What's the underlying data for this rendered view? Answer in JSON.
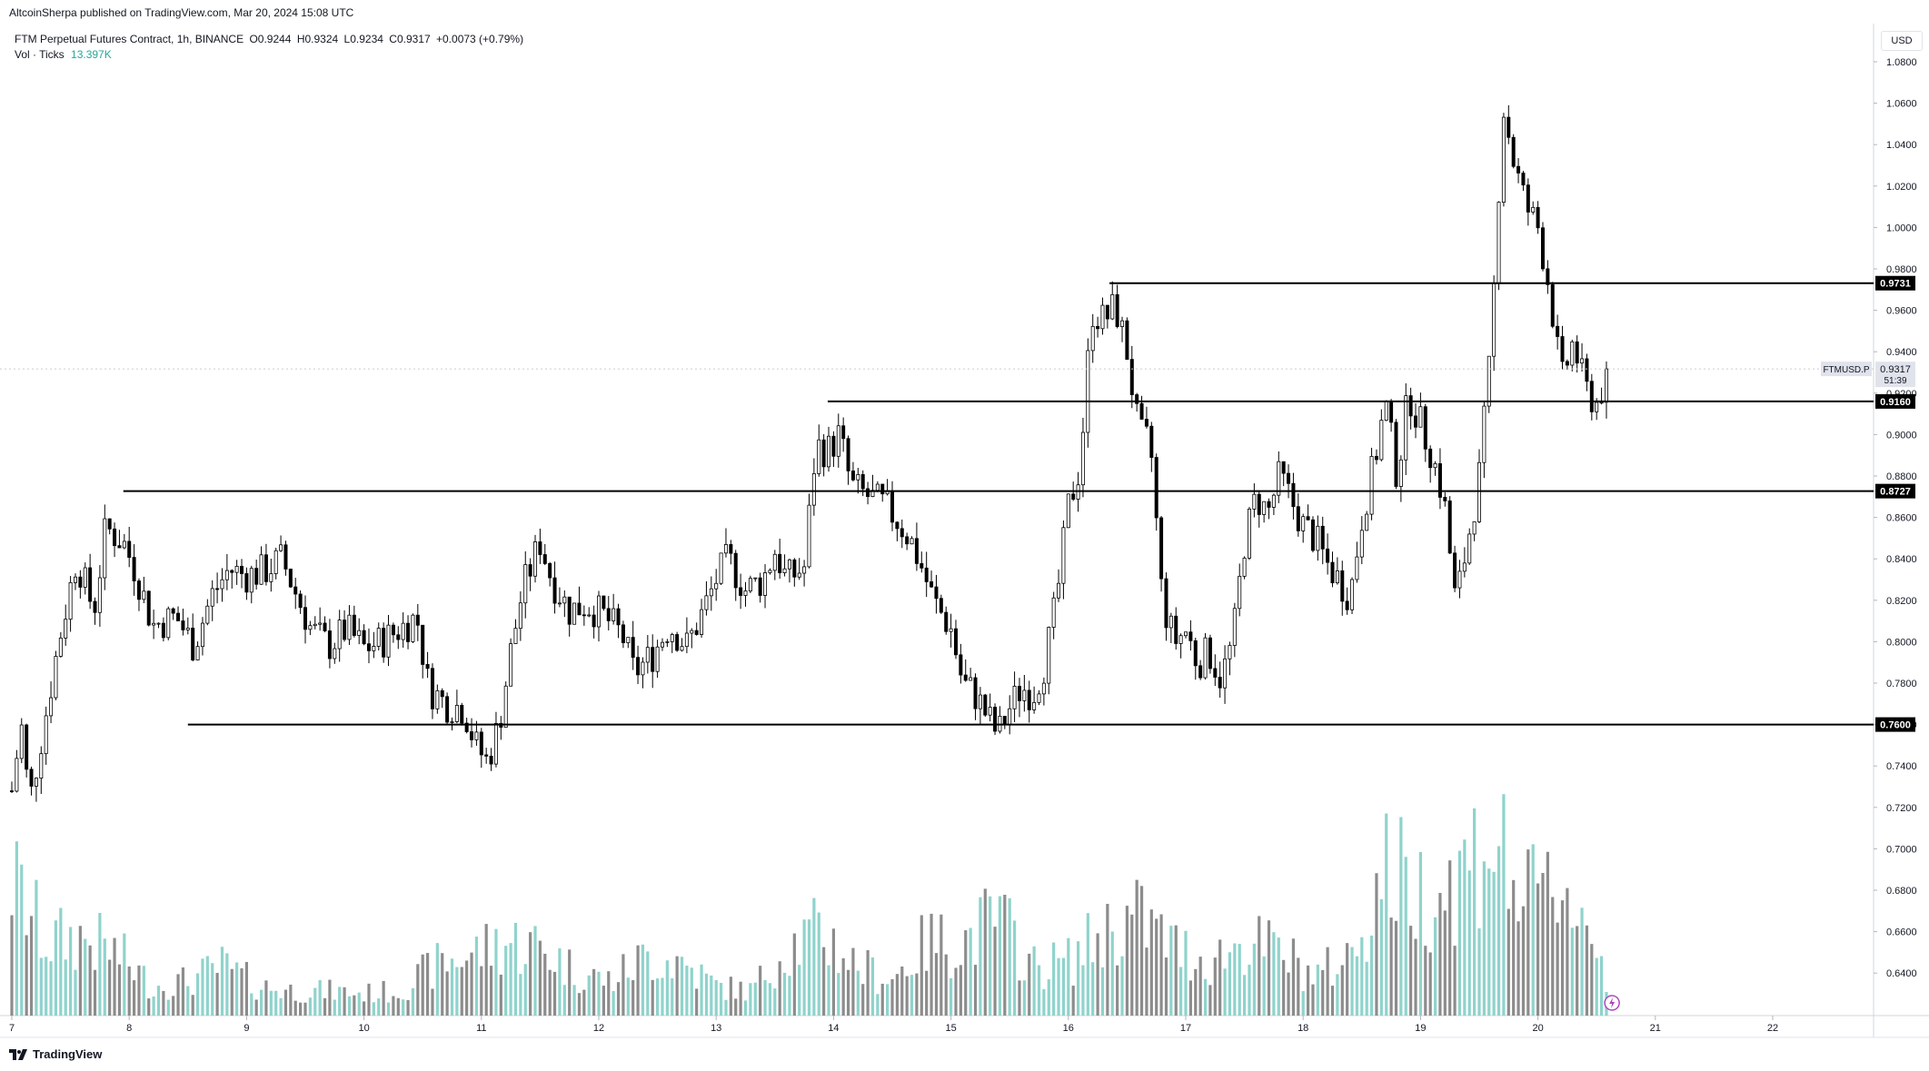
{
  "header": {
    "published": "AltcoinSherpa published on TradingView.com, Mar 20, 2024 15:08 UTC"
  },
  "legend": {
    "symbol": "FTM Perpetual Futures Contract, 1h, BINANCE",
    "open": "O0.9244",
    "high": "H0.9324",
    "low": "L0.9234",
    "close": "C0.9317",
    "change": "+0.0073 (+0.79%)",
    "volume_label": "Vol · Ticks",
    "volume_value": "13.397K"
  },
  "axis": {
    "currency": "USD",
    "y_ticks": [
      "1.0800",
      "1.0600",
      "1.0400",
      "1.0200",
      "1.0000",
      "0.9800",
      "0.9600",
      "0.9400",
      "0.9200",
      "0.9000",
      "0.8800",
      "0.8600",
      "0.8400",
      "0.8200",
      "0.8000",
      "0.7800",
      "0.7600",
      "0.7400",
      "0.7200",
      "0.7000",
      "0.6800",
      "0.6600",
      "0.6400"
    ],
    "x_ticks": [
      "7",
      "8",
      "9",
      "10",
      "11",
      "12",
      "13",
      "14",
      "15",
      "16",
      "17",
      "18",
      "19",
      "20",
      "21",
      "22"
    ]
  },
  "price_tag": {
    "symbol": "FTMUSD.P",
    "price": "0.9317",
    "countdown": "51:39"
  },
  "level_labels": [
    "0.9731",
    "0.9160",
    "0.8727",
    "0.7600"
  ],
  "footer": {
    "brand": "TradingView"
  },
  "colors": {
    "up_candle": "#ffffff",
    "down_candle": "#000000",
    "vol_up": "#8fd3cc",
    "vol_down": "#8c8c8c",
    "level_line": "#000000"
  },
  "chart_data": {
    "type": "candlestick",
    "symbol": "FTM Perpetual Futures Contract",
    "timeframe": "1h",
    "exchange": "BINANCE",
    "x_range": [
      "7",
      "22"
    ],
    "ylim": [
      0.63,
      1.09
    ],
    "horizontal_levels": [
      0.9731,
      0.916,
      0.8727,
      0.76
    ],
    "close_path": [
      [
        7.0,
        0.728
      ],
      [
        7.08,
        0.76
      ],
      [
        7.15,
        0.722
      ],
      [
        7.28,
        0.762
      ],
      [
        7.4,
        0.8
      ],
      [
        7.55,
        0.84
      ],
      [
        7.7,
        0.815
      ],
      [
        7.8,
        0.855
      ],
      [
        7.95,
        0.848
      ],
      [
        8.05,
        0.835
      ],
      [
        8.2,
        0.808
      ],
      [
        8.4,
        0.812
      ],
      [
        8.55,
        0.798
      ],
      [
        8.7,
        0.822
      ],
      [
        8.85,
        0.835
      ],
      [
        9.0,
        0.832
      ],
      [
        9.15,
        0.834
      ],
      [
        9.3,
        0.84
      ],
      [
        9.4,
        0.826
      ],
      [
        9.55,
        0.806
      ],
      [
        9.7,
        0.798
      ],
      [
        9.85,
        0.806
      ],
      [
        10.0,
        0.797
      ],
      [
        10.15,
        0.8
      ],
      [
        10.3,
        0.806
      ],
      [
        10.45,
        0.812
      ],
      [
        10.55,
        0.778
      ],
      [
        10.7,
        0.77
      ],
      [
        10.85,
        0.768
      ],
      [
        10.95,
        0.75
      ],
      [
        11.05,
        0.742
      ],
      [
        11.15,
        0.76
      ],
      [
        11.25,
        0.795
      ],
      [
        11.35,
        0.825
      ],
      [
        11.5,
        0.848
      ],
      [
        11.6,
        0.83
      ],
      [
        11.75,
        0.815
      ],
      [
        11.9,
        0.818
      ],
      [
        12.05,
        0.812
      ],
      [
        12.2,
        0.803
      ],
      [
        12.3,
        0.785
      ],
      [
        12.45,
        0.793
      ],
      [
        12.6,
        0.808
      ],
      [
        12.75,
        0.798
      ],
      [
        12.9,
        0.816
      ],
      [
        13.0,
        0.83
      ],
      [
        13.1,
        0.84
      ],
      [
        13.25,
        0.825
      ],
      [
        13.4,
        0.83
      ],
      [
        13.5,
        0.844
      ],
      [
        13.6,
        0.83
      ],
      [
        13.75,
        0.836
      ],
      [
        13.85,
        0.895
      ],
      [
        13.95,
        0.892
      ],
      [
        14.05,
        0.9
      ],
      [
        14.15,
        0.875
      ],
      [
        14.3,
        0.87
      ],
      [
        14.45,
        0.865
      ],
      [
        14.55,
        0.858
      ],
      [
        14.65,
        0.85
      ],
      [
        14.75,
        0.836
      ],
      [
        14.85,
        0.82
      ],
      [
        15.0,
        0.806
      ],
      [
        15.1,
        0.78
      ],
      [
        15.2,
        0.775
      ],
      [
        15.3,
        0.765
      ],
      [
        15.4,
        0.755
      ],
      [
        15.5,
        0.768
      ],
      [
        15.6,
        0.778
      ],
      [
        15.7,
        0.775
      ],
      [
        15.8,
        0.79
      ],
      [
        15.9,
        0.82
      ],
      [
        16.0,
        0.865
      ],
      [
        16.1,
        0.885
      ],
      [
        16.2,
        0.96
      ],
      [
        16.3,
        0.955
      ],
      [
        16.4,
        0.962
      ],
      [
        16.5,
        0.94
      ],
      [
        16.6,
        0.9
      ],
      [
        16.7,
        0.895
      ],
      [
        16.8,
        0.82
      ],
      [
        16.9,
        0.8
      ],
      [
        17.0,
        0.805
      ],
      [
        17.1,
        0.79
      ],
      [
        17.2,
        0.795
      ],
      [
        17.3,
        0.782
      ],
      [
        17.4,
        0.8
      ],
      [
        17.5,
        0.848
      ],
      [
        17.6,
        0.87
      ],
      [
        17.7,
        0.862
      ],
      [
        17.8,
        0.88
      ],
      [
        17.9,
        0.868
      ],
      [
        18.0,
        0.856
      ],
      [
        18.1,
        0.85
      ],
      [
        18.2,
        0.838
      ],
      [
        18.3,
        0.83
      ],
      [
        18.4,
        0.822
      ],
      [
        18.5,
        0.86
      ],
      [
        18.6,
        0.885
      ],
      [
        18.7,
        0.915
      ],
      [
        18.8,
        0.88
      ],
      [
        18.9,
        0.92
      ],
      [
        19.0,
        0.905
      ],
      [
        19.1,
        0.89
      ],
      [
        19.2,
        0.868
      ],
      [
        19.3,
        0.818
      ],
      [
        19.4,
        0.848
      ],
      [
        19.5,
        0.88
      ],
      [
        19.6,
        0.94
      ],
      [
        19.7,
        1.06
      ],
      [
        19.8,
        1.03
      ],
      [
        19.9,
        1.01
      ],
      [
        20.0,
        1.0
      ],
      [
        20.1,
        0.97
      ],
      [
        20.2,
        0.925
      ],
      [
        20.3,
        0.945
      ],
      [
        20.4,
        0.922
      ],
      [
        20.5,
        0.915
      ],
      [
        20.6,
        0.9317
      ]
    ],
    "volume_path": [
      [
        7.0,
        0.55
      ],
      [
        7.3,
        0.3
      ],
      [
        7.6,
        0.32
      ],
      [
        7.9,
        0.25
      ],
      [
        8.2,
        0.12
      ],
      [
        8.5,
        0.14
      ],
      [
        8.8,
        0.2
      ],
      [
        9.1,
        0.12
      ],
      [
        9.4,
        0.1
      ],
      [
        9.7,
        0.1
      ],
      [
        10.0,
        0.09
      ],
      [
        10.3,
        0.1
      ],
      [
        10.6,
        0.2
      ],
      [
        10.9,
        0.25
      ],
      [
        11.2,
        0.3
      ],
      [
        11.5,
        0.28
      ],
      [
        11.8,
        0.18
      ],
      [
        12.1,
        0.14
      ],
      [
        12.4,
        0.24
      ],
      [
        12.7,
        0.22
      ],
      [
        13.0,
        0.12
      ],
      [
        13.3,
        0.1
      ],
      [
        13.6,
        0.28
      ],
      [
        13.9,
        0.34
      ],
      [
        14.2,
        0.2
      ],
      [
        14.5,
        0.15
      ],
      [
        14.8,
        0.3
      ],
      [
        15.1,
        0.3
      ],
      [
        15.4,
        0.4
      ],
      [
        15.7,
        0.2
      ],
      [
        16.0,
        0.22
      ],
      [
        16.3,
        0.34
      ],
      [
        16.6,
        0.4
      ],
      [
        16.9,
        0.28
      ],
      [
        17.2,
        0.22
      ],
      [
        17.5,
        0.3
      ],
      [
        17.8,
        0.26
      ],
      [
        18.1,
        0.16
      ],
      [
        18.4,
        0.24
      ],
      [
        18.7,
        0.6
      ],
      [
        19.0,
        0.5
      ],
      [
        19.3,
        0.55
      ],
      [
        19.6,
        0.75
      ],
      [
        19.9,
        0.45
      ],
      [
        20.2,
        0.55
      ],
      [
        20.5,
        0.3
      ],
      [
        20.62,
        0.08
      ]
    ]
  }
}
